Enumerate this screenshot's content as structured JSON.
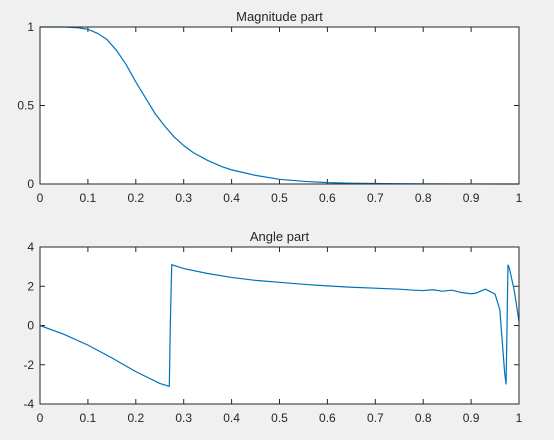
{
  "chart_data": [
    {
      "type": "line",
      "title": "Magnitude part",
      "xlabel": "",
      "ylabel": "",
      "xlim": [
        0,
        1
      ],
      "ylim": [
        0,
        1
      ],
      "xticks": [
        "0",
        "0.1",
        "0.2",
        "0.3",
        "0.4",
        "0.5",
        "0.6",
        "0.7",
        "0.8",
        "0.9",
        "1"
      ],
      "yticks": [
        "0",
        "0.5",
        "1"
      ],
      "grid": false,
      "series": [
        {
          "color": "#0072bd",
          "x": [
            0,
            0.05,
            0.08,
            0.1,
            0.12,
            0.14,
            0.16,
            0.18,
            0.2,
            0.22,
            0.24,
            0.26,
            0.28,
            0.3,
            0.32,
            0.35,
            0.38,
            0.4,
            0.45,
            0.5,
            0.55,
            0.6,
            0.65,
            0.7,
            0.8,
            0.9,
            1.0
          ],
          "values": [
            1.0,
            1.0,
            0.995,
            0.985,
            0.96,
            0.92,
            0.85,
            0.76,
            0.65,
            0.55,
            0.45,
            0.37,
            0.3,
            0.245,
            0.2,
            0.15,
            0.11,
            0.09,
            0.055,
            0.03,
            0.017,
            0.009,
            0.005,
            0.003,
            0.001,
            0.0005,
            0.0
          ]
        }
      ]
    },
    {
      "type": "line",
      "title": "Angle part",
      "xlabel": "",
      "ylabel": "",
      "xlim": [
        0,
        1
      ],
      "ylim": [
        -4,
        4
      ],
      "xticks": [
        "0",
        "0.1",
        "0.2",
        "0.3",
        "0.4",
        "0.5",
        "0.6",
        "0.7",
        "0.8",
        "0.9",
        "1"
      ],
      "yticks": [
        "-4",
        "-2",
        "0",
        "2",
        "4"
      ],
      "grid": false,
      "series": [
        {
          "color": "#0072bd",
          "x": [
            0,
            0.05,
            0.1,
            0.15,
            0.2,
            0.25,
            0.27,
            0.272,
            0.275,
            0.3,
            0.35,
            0.4,
            0.45,
            0.5,
            0.55,
            0.6,
            0.65,
            0.7,
            0.75,
            0.78,
            0.8,
            0.82,
            0.84,
            0.86,
            0.88,
            0.9,
            0.91,
            0.93,
            0.95,
            0.96,
            0.965,
            0.97,
            0.973,
            0.975,
            0.977,
            0.98,
            0.99,
            1.0
          ],
          "values": [
            0.0,
            -0.45,
            -1.0,
            -1.65,
            -2.35,
            -2.95,
            -3.1,
            0.0,
            3.1,
            2.9,
            2.65,
            2.45,
            2.3,
            2.2,
            2.1,
            2.02,
            1.95,
            1.9,
            1.85,
            1.8,
            1.78,
            1.82,
            1.75,
            1.8,
            1.68,
            1.62,
            1.65,
            1.85,
            1.6,
            0.8,
            -0.8,
            -2.4,
            -3.0,
            0.0,
            3.1,
            2.9,
            1.8,
            0.2
          ]
        }
      ]
    }
  ]
}
